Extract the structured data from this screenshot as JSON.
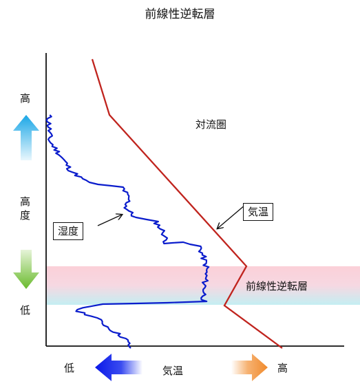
{
  "title": "前線性逆転層",
  "y_axis": {
    "top_label": "高",
    "middle_label": [
      "高",
      "度"
    ],
    "bottom_label": "低",
    "arrow_up_colors": [
      "#1aa6e6",
      "#e9f7fd"
    ],
    "arrow_down_colors": [
      "#e6f4d8",
      "#69bb2c"
    ]
  },
  "x_axis": {
    "left_label": "低",
    "center_label": "気温",
    "right_label": "高",
    "arrow_left_colors": [
      "#0a18e8",
      "#ffffff"
    ],
    "arrow_right_colors": [
      "#ffffff",
      "#f08a2c"
    ]
  },
  "labels": {
    "troposphere": "対流圏",
    "temperature": "気温",
    "humidity": "湿度",
    "inversion_layer": "前線性逆転層"
  },
  "colors": {
    "temperature_line": "#c0241e",
    "humidity_line": "#0a1ccc",
    "inversion_band_top": "#fbd0d8",
    "inversion_band_bottom": "#c4eef2",
    "axis": "#111111"
  }
}
